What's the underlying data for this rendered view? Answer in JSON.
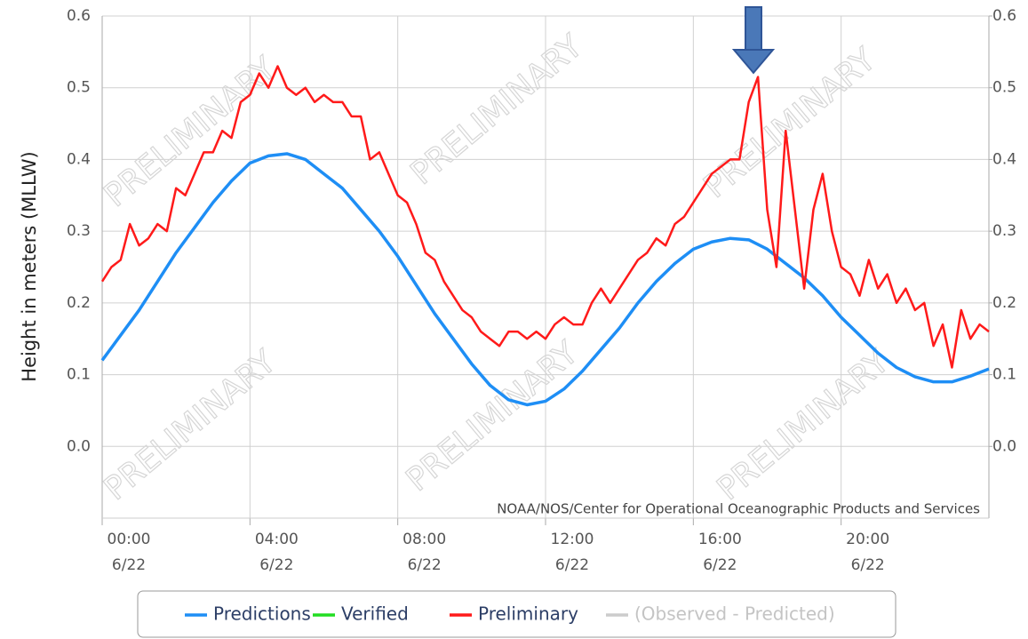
{
  "chart_data": {
    "type": "line",
    "ylabel": "Height in meters (MLLW)",
    "credit": "NOAA/NOS/Center for Operational Oceanographic Products and Services",
    "watermark": "PRELIMINARY",
    "xlim": [
      0,
      24
    ],
    "xticks": [
      {
        "value": 0,
        "label": "00:00",
        "date": "6/22"
      },
      {
        "value": 4,
        "label": "04:00",
        "date": "6/22"
      },
      {
        "value": 8,
        "label": "08:00",
        "date": "6/22"
      },
      {
        "value": 12,
        "label": "12:00",
        "date": "6/22"
      },
      {
        "value": 16,
        "label": "16:00",
        "date": "6/22"
      },
      {
        "value": 20,
        "label": "20:00",
        "date": "6/22"
      }
    ],
    "ylim": [
      -0.1,
      0.6
    ],
    "yticks": [
      {
        "value": 0,
        "label": "0.0"
      },
      0.1,
      0.2,
      0.3,
      0.4,
      0.5,
      0.6
    ],
    "y2lim": [
      -0.1,
      0.6
    ],
    "y2ticks": [
      {
        "value": 0,
        "label": "0.0"
      },
      0.1,
      0.2,
      0.3,
      0.4,
      0.5,
      0.6
    ],
    "grid": true,
    "legend": "bottom",
    "series": [
      {
        "name": "Predictions",
        "color": "#1e8ef5",
        "x": [
          0,
          0.5,
          1,
          1.5,
          2,
          2.5,
          3,
          3.5,
          4,
          4.5,
          5,
          5.5,
          6,
          6.5,
          7,
          7.5,
          8,
          8.5,
          9,
          9.5,
          10,
          10.5,
          11,
          11.5,
          12,
          12.5,
          13,
          13.5,
          14,
          14.5,
          15,
          15.5,
          16,
          16.5,
          17,
          17.5,
          18,
          18.5,
          19,
          19.5,
          20,
          20.5,
          21,
          21.5,
          22,
          22.5,
          23,
          23.5,
          24
        ],
        "values": [
          0.12,
          0.155,
          0.19,
          0.23,
          0.27,
          0.305,
          0.34,
          0.37,
          0.395,
          0.405,
          0.408,
          0.4,
          0.38,
          0.36,
          0.33,
          0.3,
          0.265,
          0.225,
          0.185,
          0.15,
          0.115,
          0.085,
          0.065,
          0.058,
          0.063,
          0.08,
          0.105,
          0.135,
          0.165,
          0.2,
          0.23,
          0.255,
          0.275,
          0.285,
          0.29,
          0.288,
          0.275,
          0.255,
          0.235,
          0.21,
          0.18,
          0.155,
          0.13,
          0.11,
          0.097,
          0.09,
          0.09,
          0.098,
          0.108
        ]
      },
      {
        "name": "Verified",
        "color": "#22dd22",
        "x": [],
        "values": []
      },
      {
        "name": "Preliminary",
        "color": "#ff1a1a",
        "x": [
          0,
          0.25,
          0.5,
          0.75,
          1,
          1.25,
          1.5,
          1.75,
          2,
          2.25,
          2.5,
          2.75,
          3,
          3.25,
          3.5,
          3.75,
          4,
          4.25,
          4.5,
          4.75,
          5,
          5.25,
          5.5,
          5.75,
          6,
          6.25,
          6.5,
          6.75,
          7,
          7.25,
          7.5,
          7.75,
          8,
          8.25,
          8.5,
          8.75,
          9,
          9.25,
          9.5,
          9.75,
          10,
          10.25,
          10.5,
          10.75,
          11,
          11.25,
          11.5,
          11.75,
          12,
          12.25,
          12.5,
          12.75,
          13,
          13.25,
          13.5,
          13.75,
          14,
          14.25,
          14.5,
          14.75,
          15,
          15.25,
          15.5,
          15.75,
          16,
          16.25,
          16.5,
          16.75,
          17,
          17.25,
          17.5,
          17.75,
          18,
          18.25,
          18.5,
          18.75,
          19,
          19.25,
          19.5,
          19.75,
          20,
          20.25,
          20.5,
          20.75,
          21,
          21.25,
          21.5,
          21.75,
          22,
          22.25,
          22.5,
          22.75,
          23,
          23.25,
          23.5,
          23.75,
          24
        ],
        "values": [
          0.23,
          0.25,
          0.26,
          0.31,
          0.28,
          0.29,
          0.31,
          0.3,
          0.36,
          0.35,
          0.38,
          0.41,
          0.41,
          0.44,
          0.43,
          0.48,
          0.49,
          0.52,
          0.5,
          0.53,
          0.5,
          0.49,
          0.5,
          0.48,
          0.49,
          0.48,
          0.48,
          0.46,
          0.46,
          0.4,
          0.41,
          0.38,
          0.35,
          0.34,
          0.31,
          0.27,
          0.26,
          0.23,
          0.21,
          0.19,
          0.18,
          0.16,
          0.15,
          0.14,
          0.16,
          0.16,
          0.15,
          0.16,
          0.15,
          0.17,
          0.18,
          0.17,
          0.17,
          0.2,
          0.22,
          0.2,
          0.22,
          0.24,
          0.26,
          0.27,
          0.29,
          0.28,
          0.31,
          0.32,
          0.34,
          0.36,
          0.38,
          0.39,
          0.4,
          0.4,
          0.48,
          0.515,
          0.33,
          0.25,
          0.44,
          0.33,
          0.22,
          0.33,
          0.38,
          0.3,
          0.25,
          0.24,
          0.21,
          0.26,
          0.22,
          0.24,
          0.2,
          0.22,
          0.19,
          0.2,
          0.14,
          0.17,
          0.11,
          0.19,
          0.15,
          0.17,
          0.16
        ]
      },
      {
        "name": "(Observed - Predicted)",
        "color": "#cccccc",
        "x": [],
        "values": []
      }
    ]
  }
}
